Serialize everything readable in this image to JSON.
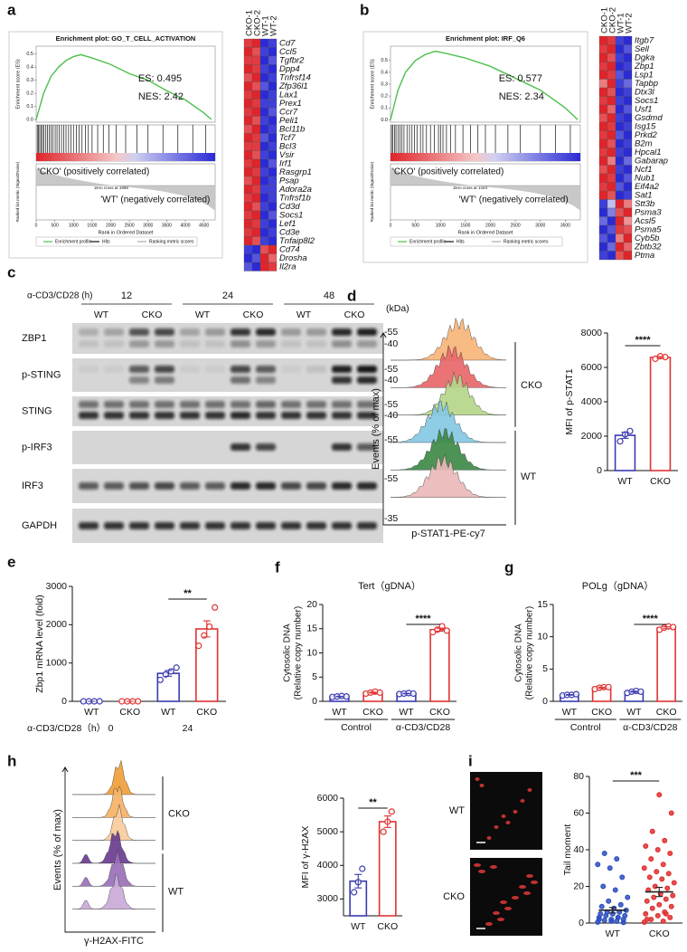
{
  "letters": [
    "a",
    "b",
    "c",
    "d",
    "e",
    "f",
    "g",
    "h",
    "i"
  ],
  "gsea": [
    {
      "title": "Enrichment plot: GO_T_CELL_ACTIVATION",
      "es_label": "ES: 0.495",
      "nes_label": "NES: 2.42",
      "ylabel": "Enrichment score (ES)",
      "ylim": [
        -0.02,
        0.56
      ],
      "yticks": [
        {
          "value": 0,
          "label": "0.0"
        },
        0.1,
        0.2,
        0.3,
        0.4,
        0.5
      ],
      "xlabel": "Rank in Ordered Dataset",
      "xlim": [
        0,
        4800
      ],
      "xticks": [
        0,
        500,
        1000,
        1500,
        2000,
        2500,
        3000,
        3500,
        4000,
        4500
      ],
      "curve_rank": [
        0,
        200,
        400,
        600,
        800,
        1000,
        1200,
        1500,
        2000,
        2500,
        3000,
        3500,
        4000,
        4500,
        4700
      ],
      "curve_es": [
        0,
        0.2,
        0.33,
        0.4,
        0.45,
        0.48,
        0.495,
        0.47,
        0.42,
        0.35,
        0.3,
        0.22,
        0.15,
        0.05,
        0
      ],
      "hits": [
        30,
        60,
        95,
        130,
        170,
        210,
        260,
        300,
        350,
        400,
        450,
        510,
        560,
        620,
        680,
        740,
        800,
        870,
        930,
        1000,
        1080,
        1150,
        1230,
        1320,
        1400,
        1500,
        1650,
        1800,
        1950,
        2150,
        2400,
        2700,
        3000,
        3400,
        3800,
        4200,
        4550
      ],
      "metric_label": "Ranked list metric (Signal2Noise)",
      "pos_label": "'CKO' (positively correlated)",
      "neg_label": "'WT' (negatively correlated)",
      "zero_cross": "Zero cross at 1965",
      "legend": [
        "Enrichment profile",
        "Hits",
        "Ranking metric scores"
      ],
      "heatmap": {
        "columns": [
          "CKO-1",
          "CKO-2",
          "WT-1",
          "WT-2"
        ],
        "genes": [
          "Cd7",
          "Ccl5",
          "Tgfbr2",
          "Dpp4",
          "Tnfrsf14",
          "Zfp36l1",
          "Lax1",
          "Prex1",
          "Ccr7",
          "Peli1",
          "Bcl11b",
          "Tcf7",
          "Bcl3",
          "Vsir",
          "Irf1",
          "Rasgrp1",
          "Psap",
          "Adora2a",
          "Tnfrsf1b",
          "Cd3d",
          "Socs1",
          "Lef1",
          "Cd3e",
          "Tnfaip8l2",
          "Cd74",
          "Drosha",
          "Il2ra"
        ],
        "values": [
          [
            0.9,
            1,
            -1,
            -0.9
          ],
          [
            1,
            0.8,
            -0.9,
            -1
          ],
          [
            0.9,
            0.9,
            -1,
            -0.8
          ],
          [
            1,
            0.9,
            -0.9,
            -1
          ],
          [
            0.8,
            1,
            -1,
            -0.9
          ],
          [
            1,
            0.8,
            -0.8,
            -1
          ],
          [
            0.9,
            1,
            -1,
            -0.9
          ],
          [
            1,
            0.9,
            -0.9,
            -0.9
          ],
          [
            0.9,
            1,
            -1,
            -0.8
          ],
          [
            1,
            0.8,
            -0.9,
            -1
          ],
          [
            0.8,
            1,
            -1,
            -0.9
          ],
          [
            1,
            0.9,
            -0.8,
            -1
          ],
          [
            0.9,
            0.9,
            -1,
            -0.9
          ],
          [
            1,
            0.8,
            -0.9,
            -1
          ],
          [
            0.9,
            1,
            -1,
            -0.8
          ],
          [
            1,
            0.9,
            -0.9,
            -1
          ],
          [
            0.8,
            1,
            -1,
            -0.9
          ],
          [
            1,
            0.9,
            -0.9,
            -0.9
          ],
          [
            0.9,
            1,
            -1,
            -0.9
          ],
          [
            1,
            0.8,
            -0.9,
            -1
          ],
          [
            0.9,
            1,
            -1,
            -0.8
          ],
          [
            1,
            0.9,
            -0.9,
            -1
          ],
          [
            0.9,
            1,
            -1,
            -0.9
          ],
          [
            1,
            0.8,
            -0.9,
            -1
          ],
          [
            -0.9,
            -1,
            0.8,
            1
          ],
          [
            -1,
            -0.8,
            1,
            0.7
          ],
          [
            -0.8,
            -1,
            1,
            0.9
          ]
        ]
      }
    },
    {
      "title": "Enrichment plot: IRF_Q6",
      "es_label": "ES: 0.577",
      "nes_label": "NES: 2.34",
      "ylabel": "Enrichment score (ES)",
      "ylim": [
        -0.02,
        0.62
      ],
      "yticks": [
        {
          "value": 0,
          "label": "0.0"
        },
        0.1,
        0.2,
        0.3,
        0.4,
        0.5
      ],
      "xlabel": "Rank in Ordered Dataset",
      "xlim": [
        0,
        3800
      ],
      "xticks": [
        0,
        500,
        1000,
        1500,
        2000,
        2500,
        3000,
        3500
      ],
      "curve_rank": [
        0,
        150,
        300,
        500,
        700,
        900,
        1100,
        1500,
        2000,
        2500,
        3000,
        3500,
        3750
      ],
      "curve_es": [
        0,
        0.25,
        0.4,
        0.5,
        0.55,
        0.577,
        0.56,
        0.52,
        0.45,
        0.35,
        0.25,
        0.1,
        0
      ],
      "hits": [
        20,
        45,
        80,
        110,
        150,
        190,
        230,
        270,
        330,
        380,
        430,
        480,
        530,
        600,
        650,
        720,
        800,
        880,
        960,
        1000,
        1050,
        1120,
        1200,
        1300,
        1450,
        1600,
        1750,
        1900,
        2100,
        2350,
        2600,
        3000,
        3300,
        3600
      ],
      "metric_label": "Ranked list metric (Signal2Noise)",
      "pos_label": "'CKO' (positively correlated)",
      "neg_label": "'WT' (negatively correlated)",
      "zero_cross": "Zero cross at 1444",
      "legend": [
        "Enrichment profile",
        "Hits",
        "Ranking metric scores"
      ],
      "heatmap": {
        "columns": [
          "CKO-1",
          "CKO-2",
          "WT-1",
          "WT-2"
        ],
        "genes": [
          "Itgb7",
          "Sell",
          "Dgka",
          "Zbp1",
          "Lsp1",
          "Tapbp",
          "Dtx3l",
          "Socs1",
          "Usf1",
          "Gsdmd",
          "Isg15",
          "Prkd2",
          "B2m",
          "Hpcal1",
          "Gabarap",
          "Ncf1",
          "Nub1",
          "Eif4a2",
          "Sat1",
          "Stt3b",
          "Psma3",
          "Acsl5",
          "Psma5",
          "Cyb5b",
          "Zbtb32",
          "Ptma"
        ],
        "values": [
          [
            1,
            0.9,
            -0.9,
            -1
          ],
          [
            0.9,
            1,
            -1,
            -0.8
          ],
          [
            1,
            0.8,
            -0.9,
            -1
          ],
          [
            0.9,
            1,
            -1,
            -0.9
          ],
          [
            1,
            0.9,
            -0.8,
            -1
          ],
          [
            0.6,
            1,
            -0.9,
            -0.7
          ],
          [
            1,
            0.8,
            -1,
            -0.9
          ],
          [
            0.9,
            1,
            -0.9,
            -1
          ],
          [
            1,
            0.7,
            -1,
            -0.8
          ],
          [
            0.8,
            1,
            -0.9,
            -1
          ],
          [
            1,
            0.9,
            -1,
            -0.9
          ],
          [
            0.9,
            1,
            -0.8,
            -1
          ],
          [
            1,
            0.8,
            -1,
            -0.9
          ],
          [
            0.9,
            1,
            -0.9,
            -1
          ],
          [
            1,
            0.6,
            -1,
            -0.7
          ],
          [
            0.8,
            1,
            -0.9,
            -1
          ],
          [
            1,
            0.9,
            -1,
            -0.8
          ],
          [
            0.9,
            1,
            -0.8,
            -1
          ],
          [
            1,
            0.8,
            -1,
            -0.9
          ],
          [
            -0.9,
            -0.3,
            1,
            0.6
          ],
          [
            -1,
            -0.6,
            0.8,
            1
          ],
          [
            -0.7,
            -1,
            1,
            0.5
          ],
          [
            -1,
            -0.8,
            0.9,
            0.8
          ],
          [
            -0.8,
            -1,
            0.6,
            1
          ],
          [
            -1,
            -0.7,
            1,
            0.7
          ],
          [
            -0.9,
            -1,
            0.8,
            1
          ]
        ]
      }
    }
  ],
  "blot": {
    "stimulus": "α-CD3/CD28 (h)",
    "times": [
      "12",
      "24",
      "48"
    ],
    "genotypes": [
      "WT",
      "CKO",
      "WT",
      "CKO",
      "WT",
      "CKO"
    ],
    "kda_header": "(kDa)",
    "rows": [
      {
        "label": "ZBP1",
        "kda": [
          "-55",
          "-40"
        ]
      },
      {
        "label": "p-STING",
        "kda": [
          "-55",
          "-40"
        ]
      },
      {
        "label": "STING",
        "kda": [
          "-55",
          "-40"
        ]
      },
      {
        "label": "p-IRF3",
        "kda": [
          "-55"
        ]
      },
      {
        "label": "IRF3",
        "kda": [
          "-55"
        ]
      },
      {
        "label": "GAPDH",
        "kda": [
          "-35"
        ]
      }
    ]
  },
  "flow_d": {
    "ylabel": "Events (% of max)",
    "xlabel": "p-STAT1-PE-cy7",
    "groups": [
      "CKO",
      "WT"
    ]
  },
  "flow_h": {
    "ylabel": "Events (% of max)",
    "xlabel": "γ-H2AX-FITC",
    "groups": [
      "CKO",
      "WT"
    ]
  },
  "comet": {
    "rows": [
      "WT",
      "CKO"
    ]
  },
  "chart_data": [
    {
      "type": "bar",
      "ylabel": "MFI of p-STAT1",
      "categories": [
        "WT",
        "CKO"
      ],
      "colors": [
        "#3a3ab0",
        "#e03232"
      ],
      "values": [
        2050,
        6580
      ],
      "errors": [
        180,
        50
      ],
      "points": [
        [
          1700,
          2100,
          2300
        ],
        [
          6500,
          6650,
          6600
        ]
      ],
      "ylim": [
        0,
        8000
      ],
      "yticks": [
        0,
        2000,
        4000,
        6000,
        8000
      ],
      "significance": "****"
    },
    {
      "type": "bar",
      "ylabel": "Zbp1 mRNA level (fold)",
      "categories": [
        "WT",
        "CKO",
        "WT",
        "CKO"
      ],
      "colors": [
        "#3a3ab0",
        "#e03232",
        "#3a3ab0",
        "#e03232"
      ],
      "values": [
        0,
        0,
        730,
        1890
      ],
      "errors": [
        0,
        0,
        75,
        210
      ],
      "points": [
        [
          0,
          0,
          0,
          0
        ],
        [
          0,
          0,
          0,
          0
        ],
        [
          560,
          700,
          780,
          880
        ],
        [
          1450,
          1720,
          1950,
          2450
        ]
      ],
      "ylim": [
        0,
        3000
      ],
      "yticks": [
        0,
        1000,
        2000,
        3000
      ],
      "significance": "**",
      "xlabel": "α-CD3/CD28（h）",
      "groups": [
        "0",
        "24"
      ]
    },
    {
      "type": "bar",
      "title": "Tert（gDNA）",
      "ylabel": [
        "Cytosolic DNA",
        "(Relative copy number)"
      ],
      "categories": [
        "WT",
        "CKO",
        "WT",
        "CKO"
      ],
      "colors": [
        "#3a3ab0",
        "#e03232",
        "#3a3ab0",
        "#e03232"
      ],
      "values": [
        1.0,
        1.8,
        1.6,
        14.8
      ],
      "errors": [
        0.05,
        0.1,
        0.05,
        0.3
      ],
      "points": [
        [
          0.9,
          1.0,
          1.1,
          1.0
        ],
        [
          1.6,
          1.8,
          2.0,
          1.8
        ],
        [
          1.5,
          1.6,
          1.7,
          1.6
        ],
        [
          14.3,
          14.8,
          15.5,
          14.6
        ]
      ],
      "ylim": [
        0,
        20
      ],
      "yticks": [
        0,
        5,
        10,
        15,
        20
      ],
      "significance": "****",
      "groups": [
        "Control",
        "α-CD3/CD28"
      ]
    },
    {
      "type": "bar",
      "title": "POLg（gDNA）",
      "ylabel": [
        "Cytosolic DNA",
        "(Relative copy number)"
      ],
      "categories": [
        "WT",
        "CKO",
        "WT",
        "CKO"
      ],
      "colors": [
        "#3a3ab0",
        "#e03232",
        "#3a3ab0",
        "#e03232"
      ],
      "values": [
        1.0,
        2.1,
        1.5,
        11.4
      ],
      "errors": [
        0.05,
        0.1,
        0.07,
        0.15
      ],
      "points": [
        [
          0.9,
          1.0,
          1.0,
          1.1
        ],
        [
          1.9,
          2.1,
          2.2,
          2.2
        ],
        [
          1.3,
          1.5,
          1.6,
          1.5
        ],
        [
          11.1,
          11.4,
          11.6,
          11.5
        ]
      ],
      "ylim": [
        0,
        15
      ],
      "yticks": [
        0,
        5,
        10,
        15
      ],
      "significance": "****",
      "groups": [
        "Control",
        "α-CD3/CD28"
      ]
    },
    {
      "type": "bar",
      "ylabel": "MFI of γ-H2AX",
      "categories": [
        "WT",
        "CKO"
      ],
      "colors": [
        "#3a3ab0",
        "#e03232"
      ],
      "values": [
        3530,
        5300
      ],
      "errors": [
        200,
        170
      ],
      "points": [
        [
          3200,
          3500,
          3900
        ],
        [
          5000,
          5300,
          5600
        ]
      ],
      "ylim": [
        2500,
        6000
      ],
      "yticks": [
        3000,
        4000,
        5000,
        6000
      ],
      "significance": "**"
    },
    {
      "type": "scatter",
      "ylabel": "Tail moment",
      "categories": [
        "WT",
        "CKO"
      ],
      "colors": [
        "#3050c0",
        "#e03232"
      ],
      "values": [
        7,
        17
      ],
      "errors": [
        1.5,
        2.5
      ],
      "points": [
        [
          0.5,
          1,
          1.5,
          2,
          2,
          3,
          3,
          4,
          4,
          5,
          5,
          6,
          6,
          7,
          8,
          9,
          10,
          12,
          14,
          18,
          20,
          25,
          30,
          32,
          35,
          38,
          0.3,
          1,
          2,
          3
        ],
        [
          0.5,
          1,
          2,
          3,
          4,
          5,
          6,
          8,
          9,
          10,
          12,
          13,
          14,
          15,
          16,
          18,
          19,
          20,
          22,
          24,
          25,
          27,
          28,
          30,
          32,
          35,
          38,
          40,
          42,
          45,
          50,
          60,
          70,
          2,
          5
        ]
      ],
      "ylim": [
        0,
        80
      ],
      "yticks": [
        0,
        20,
        40,
        60,
        80
      ],
      "significance": "***"
    }
  ]
}
